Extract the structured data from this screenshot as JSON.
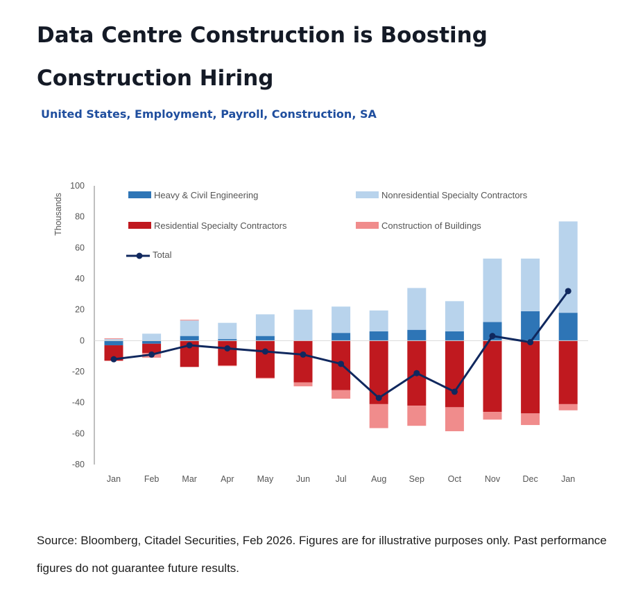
{
  "page": {
    "title": "Data Centre Construction is Boosting Construction Hiring",
    "subtitle": "United States, Employment, Payroll, Construction, SA",
    "source": "Source: Bloomberg, Citadel Securities, Feb 2026. Figures are for illustrative purposes only. Past performance figures do not guarantee future results."
  },
  "chart_data": {
    "type": "bar",
    "stacked": true,
    "ylabel": "Thousands",
    "xlabel": "",
    "ylim": [
      -80,
      100
    ],
    "yticks": [
      100,
      80,
      60,
      40,
      20,
      0,
      -20,
      -40,
      -60,
      -80
    ],
    "grid": false,
    "legend_position": "top",
    "categories": [
      "Jan",
      "Feb",
      "Mar",
      "Apr",
      "May",
      "Jun",
      "Jul",
      "Aug",
      "Sep",
      "Oct",
      "Nov",
      "Dec",
      "Jan"
    ],
    "series": [
      {
        "name": "Heavy & Civil Engineering",
        "type": "bar",
        "color": "#2e75b6",
        "values": [
          -3,
          -2,
          3,
          1,
          3,
          0,
          5,
          6,
          7,
          6,
          12,
          19,
          18
        ]
      },
      {
        "name": "Nonresidential Specialty Contractors",
        "type": "bar",
        "color": "#b8d3ec",
        "values": [
          1,
          4.5,
          10,
          10.5,
          14,
          20,
          17,
          13.5,
          27,
          19.5,
          41,
          34,
          59
        ]
      },
      {
        "name": "Residential Specialty Contractors",
        "type": "bar",
        "color": "#c0191f",
        "values": [
          -10,
          -6,
          -17,
          -16,
          -24,
          -27,
          -32,
          -41,
          -42,
          -43,
          -46,
          -47,
          -41
        ]
      },
      {
        "name": "Construction of Buildings",
        "type": "bar",
        "color": "#f08c8c",
        "values": [
          0.5,
          -3,
          0.5,
          -0.5,
          -0.5,
          -2.5,
          -5.5,
          -15.5,
          -13,
          -15.5,
          -5,
          -7.5,
          -4
        ]
      },
      {
        "name": "Total",
        "type": "line",
        "color": "#10285e",
        "values": [
          -12,
          -9,
          -3,
          -5,
          -7,
          -9,
          -15,
          -37,
          -21,
          -33,
          3,
          -1,
          32
        ]
      }
    ]
  }
}
